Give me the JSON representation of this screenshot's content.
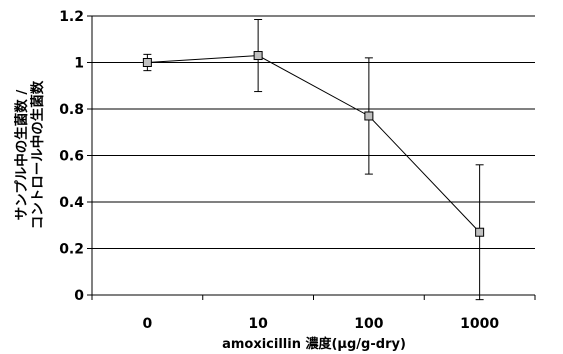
{
  "chart_data": {
    "type": "line",
    "title": "",
    "xlabel": "amoxicillin 濃度(μg/g-dry)",
    "ylabel_line1": "サンプル中の生菌数 /",
    "ylabel_line2": "コントロール中の生菌数",
    "categories": [
      "0",
      "10",
      "100",
      "1000"
    ],
    "ylim": [
      0,
      1.2
    ],
    "yticks": [
      0,
      0.2,
      0.4,
      0.6,
      0.8,
      1,
      1.2
    ],
    "ytick_labels": [
      "0",
      "0.2",
      "0.4",
      "0.6",
      "0.8",
      "1",
      "1.2"
    ],
    "grid": true,
    "legend": "none",
    "series": [
      {
        "values": [
          1.0,
          1.03,
          0.77,
          0.27
        ],
        "error": [
          0.035,
          0.155,
          0.25,
          0.29
        ],
        "line_color": "#000000",
        "marker_fill": "#c0c0c0"
      }
    ]
  }
}
